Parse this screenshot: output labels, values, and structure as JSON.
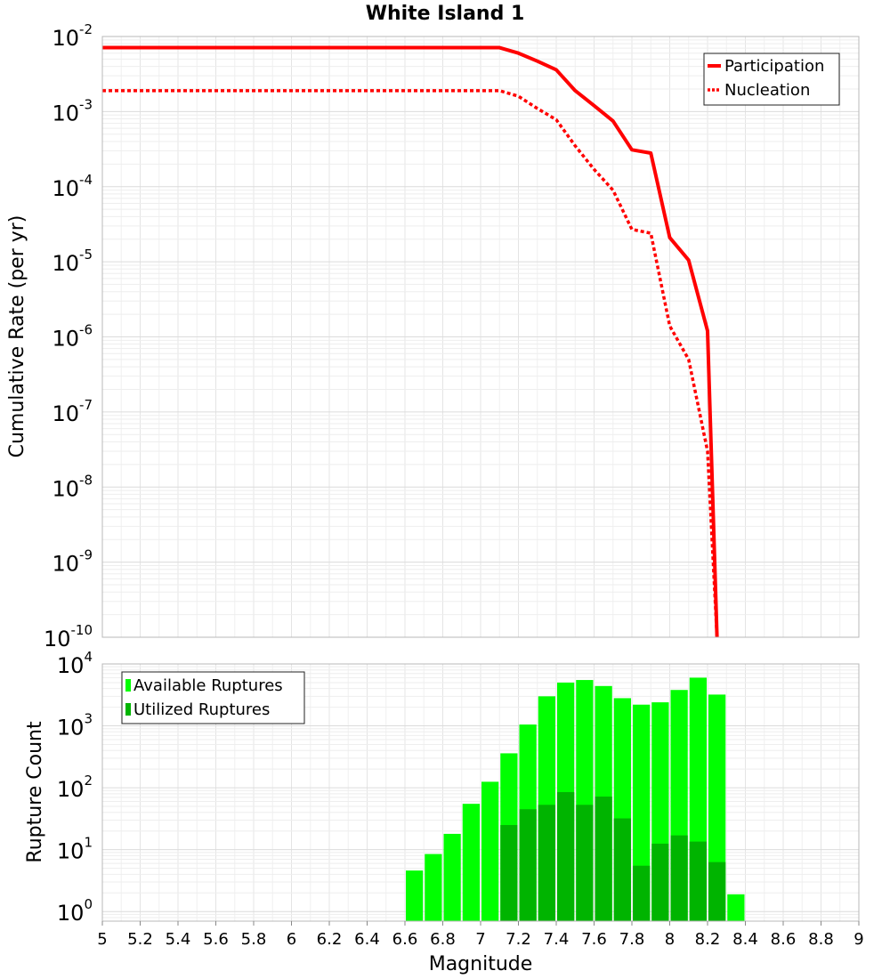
{
  "chart_data": [
    {
      "type": "line",
      "title": "White Island 1",
      "ylabel": "Cumulative Rate (per yr)",
      "xlabel": "",
      "y_scale": "log",
      "xlim": [
        5,
        9
      ],
      "ylim": [
        1e-10,
        0.01
      ],
      "grid": true,
      "legend_position": "top-right",
      "y_ticks": [
        {
          "base": "10",
          "exp": "-2",
          "value": 0.01
        },
        {
          "base": "10",
          "exp": "-3",
          "value": 0.001
        },
        {
          "base": "10",
          "exp": "-4",
          "value": 0.0001
        },
        {
          "base": "10",
          "exp": "-5",
          "value": 1e-05
        },
        {
          "base": "10",
          "exp": "-6",
          "value": 1e-06
        },
        {
          "base": "10",
          "exp": "-7",
          "value": 1e-07
        },
        {
          "base": "10",
          "exp": "-8",
          "value": 1e-08
        },
        {
          "base": "10",
          "exp": "-9",
          "value": 1e-09
        },
        {
          "base": "10",
          "exp": "-10",
          "value": 1e-10
        }
      ],
      "series": [
        {
          "name": "Participation",
          "color": "#ff0000",
          "style": "solid",
          "x": [
            5.0,
            5.1,
            5.2,
            5.3,
            5.4,
            5.5,
            5.6,
            5.7,
            5.8,
            5.9,
            6.0,
            6.1,
            6.2,
            6.3,
            6.4,
            6.5,
            6.6,
            6.7,
            6.8,
            6.9,
            7.0,
            7.1,
            7.2,
            7.3,
            7.4,
            7.5,
            7.6,
            7.7,
            7.8,
            7.9,
            8.0,
            8.1,
            8.2,
            8.25
          ],
          "y": [
            0.0071,
            0.0071,
            0.0071,
            0.0071,
            0.0071,
            0.0071,
            0.0071,
            0.0071,
            0.0071,
            0.0071,
            0.0071,
            0.0071,
            0.0071,
            0.0071,
            0.0071,
            0.0071,
            0.0071,
            0.0071,
            0.0071,
            0.0071,
            0.0071,
            0.0071,
            0.006,
            0.0047,
            0.0036,
            0.0019,
            0.0012,
            0.00075,
            0.00031,
            0.00028,
            2.1e-05,
            1.05e-05,
            1.2e-06,
            1e-10
          ]
        },
        {
          "name": "Nucleation",
          "color": "#ff0000",
          "style": "dotted",
          "x": [
            5.0,
            5.1,
            5.2,
            5.3,
            5.4,
            5.5,
            5.6,
            5.7,
            5.8,
            5.9,
            6.0,
            6.1,
            6.2,
            6.3,
            6.4,
            6.5,
            6.6,
            6.7,
            6.8,
            6.9,
            7.0,
            7.1,
            7.2,
            7.3,
            7.4,
            7.5,
            7.6,
            7.7,
            7.8,
            7.9,
            8.0,
            8.1,
            8.2,
            8.25
          ],
          "y": [
            0.0019,
            0.0019,
            0.0019,
            0.0019,
            0.0019,
            0.0019,
            0.0019,
            0.0019,
            0.0019,
            0.0019,
            0.0019,
            0.0019,
            0.0019,
            0.0019,
            0.0019,
            0.0019,
            0.0019,
            0.0019,
            0.0019,
            0.0019,
            0.0019,
            0.0019,
            0.0016,
            0.0011,
            0.00078,
            0.00035,
            0.00017,
            9e-05,
            2.7e-05,
            2.4e-05,
            1.4e-06,
            5e-07,
            3e-08,
            1e-10
          ]
        }
      ]
    },
    {
      "type": "bar",
      "title": "",
      "ylabel": "Rupture Count",
      "xlabel": "Magnitude",
      "y_scale": "log",
      "xlim": [
        5,
        9
      ],
      "ylim": [
        0.7,
        10000
      ],
      "grid": true,
      "legend_position": "top-left",
      "x_ticks": [
        "5",
        "5.2",
        "5.4",
        "5.6",
        "5.8",
        "6",
        "6.2",
        "6.4",
        "6.6",
        "6.8",
        "7",
        "7.2",
        "7.4",
        "7.6",
        "7.8",
        "8",
        "8.2",
        "8.4",
        "8.6",
        "8.8",
        "9"
      ],
      "y_ticks": [
        {
          "base": "10",
          "exp": "4",
          "value": 10000
        },
        {
          "base": "10",
          "exp": "3",
          "value": 1000
        },
        {
          "base": "10",
          "exp": "2",
          "value": 100
        },
        {
          "base": "10",
          "exp": "1",
          "value": 10
        },
        {
          "base": "10",
          "exp": "0",
          "value": 1
        }
      ],
      "categories": [
        6.65,
        6.75,
        6.85,
        6.95,
        7.05,
        7.15,
        7.25,
        7.35,
        7.45,
        7.55,
        7.65,
        7.75,
        7.85,
        7.95,
        8.05,
        8.15,
        8.25,
        8.35
      ],
      "bar_width": 0.1,
      "series": [
        {
          "name": "Available Ruptures",
          "color": "#00ff00",
          "values": [
            4.6,
            8.5,
            18,
            55,
            125,
            360,
            1050,
            3000,
            5000,
            5500,
            4400,
            2800,
            2200,
            2400,
            3800,
            6000,
            3200,
            1.9
          ]
        },
        {
          "name": "Utilized Ruptures",
          "color": "#00b400",
          "values": [
            null,
            null,
            null,
            null,
            null,
            25,
            45,
            53,
            85,
            53,
            72,
            32,
            5.5,
            12.5,
            17,
            13.5,
            6.3,
            null
          ]
        }
      ]
    }
  ]
}
